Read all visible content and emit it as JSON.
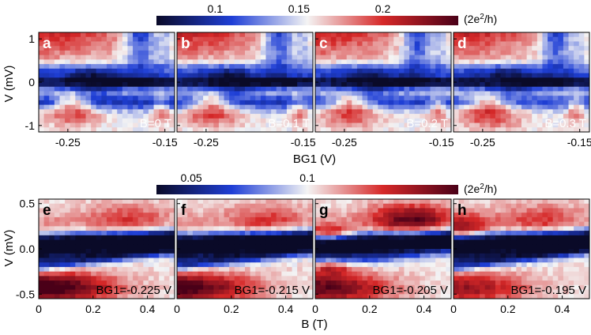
{
  "colorbars": [
    {
      "ticks": [
        "0.1",
        "0.15",
        "0.2"
      ],
      "tick_values": [
        0.1,
        0.15,
        0.2
      ],
      "range": [
        0.065,
        0.245
      ],
      "unit_prefix": "(2e",
      "unit_sup": "2",
      "unit_suffix": "/h)"
    },
    {
      "ticks": [
        "0.05",
        "0.1"
      ],
      "tick_values": [
        0.05,
        0.1
      ],
      "range": [
        0.035,
        0.165
      ],
      "unit_prefix": "(2e",
      "unit_sup": "2",
      "unit_suffix": "/h)"
    }
  ],
  "colors": {
    "low": "#0a0a28",
    "mid_low": "#1f3fd6",
    "mid": "#f4f4f4",
    "mid_high": "#d62828",
    "high": "#4a0018"
  },
  "top_row": {
    "ylabel": "V (mV)",
    "xlabel": "BG1 (V)",
    "yticks": [
      "1",
      "0",
      "-1"
    ],
    "ytick_values": [
      1,
      0,
      -1
    ],
    "ylim": [
      -1.15,
      1.15
    ],
    "xlim": [
      -0.28,
      -0.14
    ],
    "xticks": [
      "-0.25",
      "-0.15"
    ],
    "xtick_values": [
      -0.25,
      -0.15
    ],
    "panels": [
      {
        "letter": "a",
        "label": "B=0 T",
        "B": 0.0
      },
      {
        "letter": "b",
        "label": "B=0.1 T",
        "B": 0.1
      },
      {
        "letter": "c",
        "label": "B=0.2 T",
        "B": 0.2
      },
      {
        "letter": "d",
        "label": "B=0.3 T",
        "B": 0.3
      }
    ]
  },
  "bottom_row": {
    "ylabel": "V (mV)",
    "xlabel": "B (T)",
    "yticks": [
      "0.5",
      "0.0",
      "-0.5"
    ],
    "ytick_values": [
      0.5,
      0.0,
      -0.5
    ],
    "ylim": [
      -0.55,
      0.55
    ],
    "xlim": [
      0,
      0.5
    ],
    "xticks": [
      "0",
      "0.2",
      "0.4"
    ],
    "xtick_values": [
      0,
      0.2,
      0.4
    ],
    "panels": [
      {
        "letter": "e",
        "label": "BG1=-0.225 V",
        "BG1": -0.225
      },
      {
        "letter": "f",
        "label": "BG1=-0.215 V",
        "BG1": -0.215
      },
      {
        "letter": "g",
        "label": "BG1=-0.205 V",
        "BG1": -0.205
      },
      {
        "letter": "h",
        "label": "BG1=-0.195 V",
        "BG1": -0.195
      }
    ]
  },
  "chart_data": [
    {
      "type": "heatmap",
      "panel": "a",
      "title": "B=0 T",
      "xlabel": "BG1 (V)",
      "ylabel": "V (mV)",
      "xlim": [
        -0.28,
        -0.14
      ],
      "ylim": [
        -1.15,
        1.15
      ],
      "zlim": [
        0.065,
        0.245
      ]
    },
    {
      "type": "heatmap",
      "panel": "b",
      "title": "B=0.1 T",
      "xlabel": "BG1 (V)",
      "ylabel": "V (mV)",
      "xlim": [
        -0.28,
        -0.14
      ],
      "ylim": [
        -1.15,
        1.15
      ],
      "zlim": [
        0.065,
        0.245
      ]
    },
    {
      "type": "heatmap",
      "panel": "c",
      "title": "B=0.2 T",
      "xlabel": "BG1 (V)",
      "ylabel": "V (mV)",
      "xlim": [
        -0.28,
        -0.14
      ],
      "ylim": [
        -1.15,
        1.15
      ],
      "zlim": [
        0.065,
        0.245
      ]
    },
    {
      "type": "heatmap",
      "panel": "d",
      "title": "B=0.3 T",
      "xlabel": "BG1 (V)",
      "ylabel": "V (mV)",
      "xlim": [
        -0.28,
        -0.14
      ],
      "ylim": [
        -1.15,
        1.15
      ],
      "zlim": [
        0.065,
        0.245
      ]
    },
    {
      "type": "heatmap",
      "panel": "e",
      "title": "BG1=-0.225 V",
      "xlabel": "B (T)",
      "ylabel": "V (mV)",
      "xlim": [
        0,
        0.5
      ],
      "ylim": [
        -0.55,
        0.55
      ],
      "zlim": [
        0.035,
        0.165
      ]
    },
    {
      "type": "heatmap",
      "panel": "f",
      "title": "BG1=-0.215 V",
      "xlabel": "B (T)",
      "ylabel": "V (mV)",
      "xlim": [
        0,
        0.5
      ],
      "ylim": [
        -0.55,
        0.55
      ],
      "zlim": [
        0.035,
        0.165
      ]
    },
    {
      "type": "heatmap",
      "panel": "g",
      "title": "BG1=-0.205 V",
      "xlabel": "B (T)",
      "ylabel": "V (mV)",
      "xlim": [
        0,
        0.5
      ],
      "ylim": [
        -0.55,
        0.55
      ],
      "zlim": [
        0.035,
        0.165
      ]
    },
    {
      "type": "heatmap",
      "panel": "h",
      "title": "BG1=-0.195 V",
      "xlabel": "B (T)",
      "ylabel": "V (mV)",
      "xlim": [
        0,
        0.5
      ],
      "ylim": [
        -0.55,
        0.55
      ],
      "zlim": [
        0.035,
        0.165
      ]
    }
  ]
}
